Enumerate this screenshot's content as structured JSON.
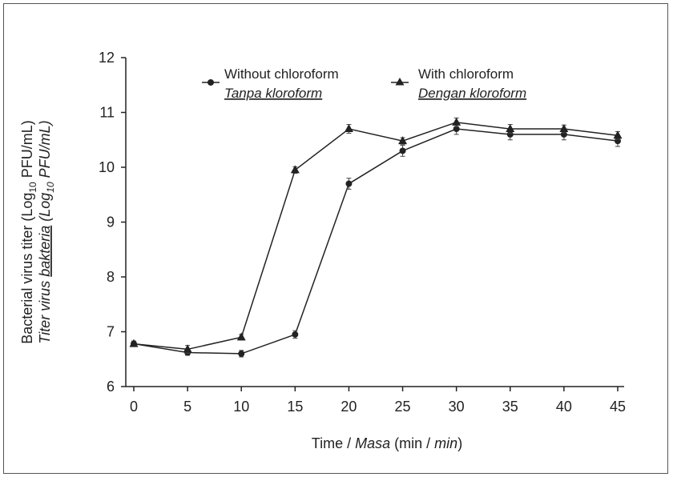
{
  "chart_data": {
    "type": "line",
    "title": "",
    "x": [
      0,
      5,
      10,
      15,
      20,
      25,
      30,
      35,
      40,
      45
    ],
    "x_ticks": [
      "0",
      "5",
      "10",
      "15",
      "20",
      "25",
      "30",
      "35",
      "40",
      "45"
    ],
    "y_ticks": [
      "6",
      "7",
      "8",
      "9",
      "10",
      "11",
      "12"
    ],
    "xlim": [
      0,
      45
    ],
    "ylim": [
      6,
      12
    ],
    "xlabel": {
      "prefix": "Time / ",
      "italic": "Masa",
      "middle": " (min / ",
      "italic_unit": "min",
      "suffix": ")"
    },
    "ylabel": {
      "line1_prefix": "Bacterial virus titer (Log",
      "line1_sub": "10",
      "line1_suffix": " PFU/mL)",
      "line2_prefix": "Titer virus ",
      "line2_underlined": "bakteria",
      "line2_mid": " (Log",
      "line2_sub": "10",
      "line2_suffix": " PFU/mL)"
    },
    "grid": false,
    "legend_position": "top",
    "series": [
      {
        "name": "Without chloroform",
        "name_alt": "Tanpa kloroform",
        "marker": "circle",
        "values": [
          6.78,
          6.62,
          6.6,
          6.95,
          9.7,
          10.3,
          10.7,
          10.6,
          10.6,
          10.48
        ],
        "errors": [
          0.05,
          0.05,
          0.06,
          0.07,
          0.1,
          0.1,
          0.1,
          0.1,
          0.1,
          0.1
        ]
      },
      {
        "name": "With chloroform",
        "name_alt": "Dengan kloroform",
        "marker": "triangle",
        "values": [
          6.78,
          6.68,
          6.9,
          9.95,
          10.7,
          10.48,
          10.82,
          10.7,
          10.7,
          10.58
        ],
        "errors": [
          0.05,
          0.07,
          0.05,
          0.06,
          0.08,
          0.06,
          0.08,
          0.08,
          0.07,
          0.07
        ]
      }
    ]
  }
}
